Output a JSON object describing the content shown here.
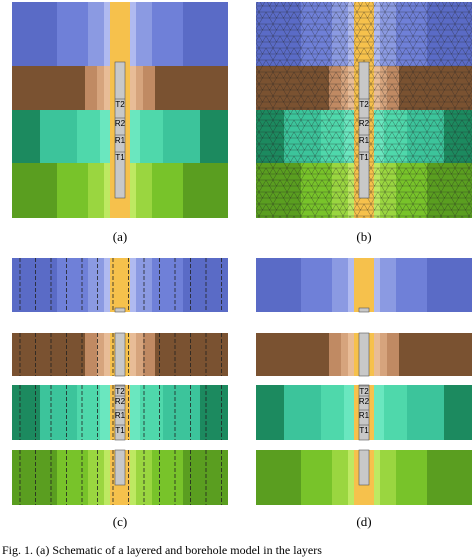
{
  "panels": [
    {
      "label": "(a)",
      "tool_labels": [
        "T2",
        "R2",
        "R1",
        "T1"
      ]
    },
    {
      "label": "(b)",
      "tool_labels": [
        "T2",
        "R2",
        "R1",
        "T1"
      ]
    },
    {
      "label": "(c)",
      "tool_labels": [
        "T2",
        "R2",
        "R1",
        "T1"
      ]
    },
    {
      "label": "(d)",
      "tool_labels": [
        "T2",
        "R2",
        "R1",
        "T1"
      ]
    }
  ],
  "caption": "Fig. 1.   (a) Schematic of a layered and borehole model in the layers"
}
